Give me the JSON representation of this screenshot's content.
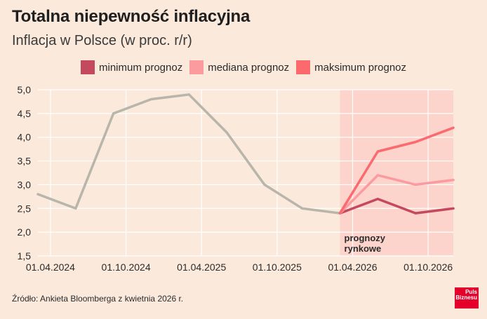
{
  "title": "Totalna niepewność inflacyjna",
  "subtitle": "Inflacja w Polsce (w proc. r/r)",
  "source": "Źródło: Ankieta Bloomberga z kwietnia 2026 r.",
  "logo": {
    "line1": "Puls",
    "line2": "Biznesu"
  },
  "colors": {
    "background": "#fbe9dc",
    "forecast_band": "#fdd4cb",
    "historical": "#b8b5aa",
    "minimum": "#c4485e",
    "median": "#fb9ba0",
    "maximum": "#fb6a6e",
    "grid": "#ffffff"
  },
  "chart_data": {
    "type": "line",
    "title": "Totalna niepewność inflacyjna",
    "subtitle": "Inflacja w Polsce (w proc. r/r)",
    "xlabel": "",
    "ylabel": "",
    "x_ticks": [
      "01.04.2024",
      "01.10.2024",
      "01.04.2025",
      "01.10.2025",
      "01.04.2026",
      "01.10.2026"
    ],
    "y_ticks": [
      "1,5",
      "2,0",
      "2,5",
      "3,0",
      "3,5",
      "4,0",
      "4,5",
      "5,0"
    ],
    "ylim": [
      1.5,
      5.0
    ],
    "xlim": [
      "2024-03",
      "2026-12"
    ],
    "grid": true,
    "legend_position": "top",
    "annotation": {
      "line1": "prognozy",
      "line2": "rynkowe"
    },
    "forecast_region": {
      "from": "2026-03",
      "to": "2026-12"
    },
    "historical": {
      "x": [
        "2024-03",
        "2024-06",
        "2024-09",
        "2024-12",
        "2025-03",
        "2025-06",
        "2025-09",
        "2025-12",
        "2026-03"
      ],
      "values": [
        2.8,
        2.5,
        4.5,
        4.8,
        4.9,
        4.1,
        3.0,
        2.5,
        2.4
      ]
    },
    "series": [
      {
        "name": "minimum prognoz",
        "x": [
          "2026-03",
          "2026-06",
          "2026-09",
          "2026-12"
        ],
        "values": [
          2.4,
          2.7,
          2.4,
          2.5
        ]
      },
      {
        "name": "mediana prognoz",
        "x": [
          "2026-03",
          "2026-06",
          "2026-09",
          "2026-12"
        ],
        "values": [
          2.4,
          3.2,
          3.0,
          3.1
        ]
      },
      {
        "name": "maksimum prognoz",
        "x": [
          "2026-03",
          "2026-06",
          "2026-09",
          "2026-12"
        ],
        "values": [
          2.4,
          3.7,
          3.9,
          4.2
        ]
      }
    ]
  }
}
